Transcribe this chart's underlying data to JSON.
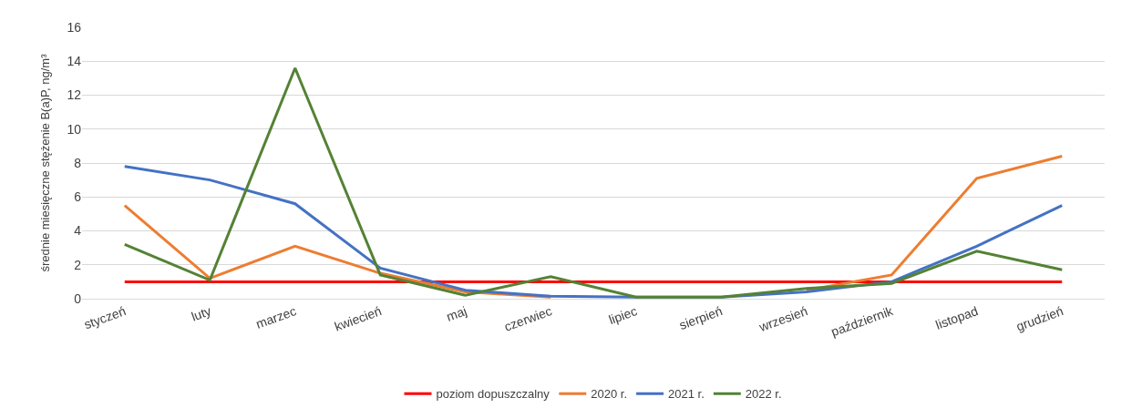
{
  "chart_data": {
    "type": "line",
    "ylabel": "średnie miesięczne stężenie B(a)P, ng/m³",
    "categories": [
      "styczeń",
      "luty",
      "marzec",
      "kwiecień",
      "maj",
      "czerwiec",
      "lipiec",
      "sierpień",
      "wrzesień",
      "październik",
      "listopad",
      "grudzień"
    ],
    "series": [
      {
        "name": "poziom dopuszczalny",
        "color": "#ff0000",
        "values": [
          1,
          1,
          1,
          1,
          1,
          1,
          1,
          1,
          1,
          1,
          1,
          1
        ]
      },
      {
        "name": "2020 r.",
        "color": "#ed7d31",
        "values": [
          5.5,
          1.2,
          3.1,
          1.5,
          0.4,
          0.1,
          null,
          null,
          0.5,
          1.4,
          7.1,
          8.4
        ]
      },
      {
        "name": "2021 r.",
        "color": "#4472c4",
        "values": [
          7.8,
          7.0,
          5.6,
          1.8,
          0.5,
          0.15,
          0.1,
          0.1,
          0.4,
          1.0,
          3.1,
          5.5
        ]
      },
      {
        "name": "2022 r.",
        "color": "#548235",
        "values": [
          3.2,
          1.1,
          13.6,
          1.4,
          0.2,
          1.3,
          0.1,
          0.1,
          0.6,
          0.9,
          2.8,
          1.7
        ]
      }
    ],
    "ylim": [
      0,
      16
    ],
    "yticks": [
      0,
      2,
      4,
      6,
      8,
      10,
      12,
      14,
      16
    ],
    "grid": "y",
    "legend": "bottom",
    "marker": "none",
    "line_style": "solid"
  }
}
